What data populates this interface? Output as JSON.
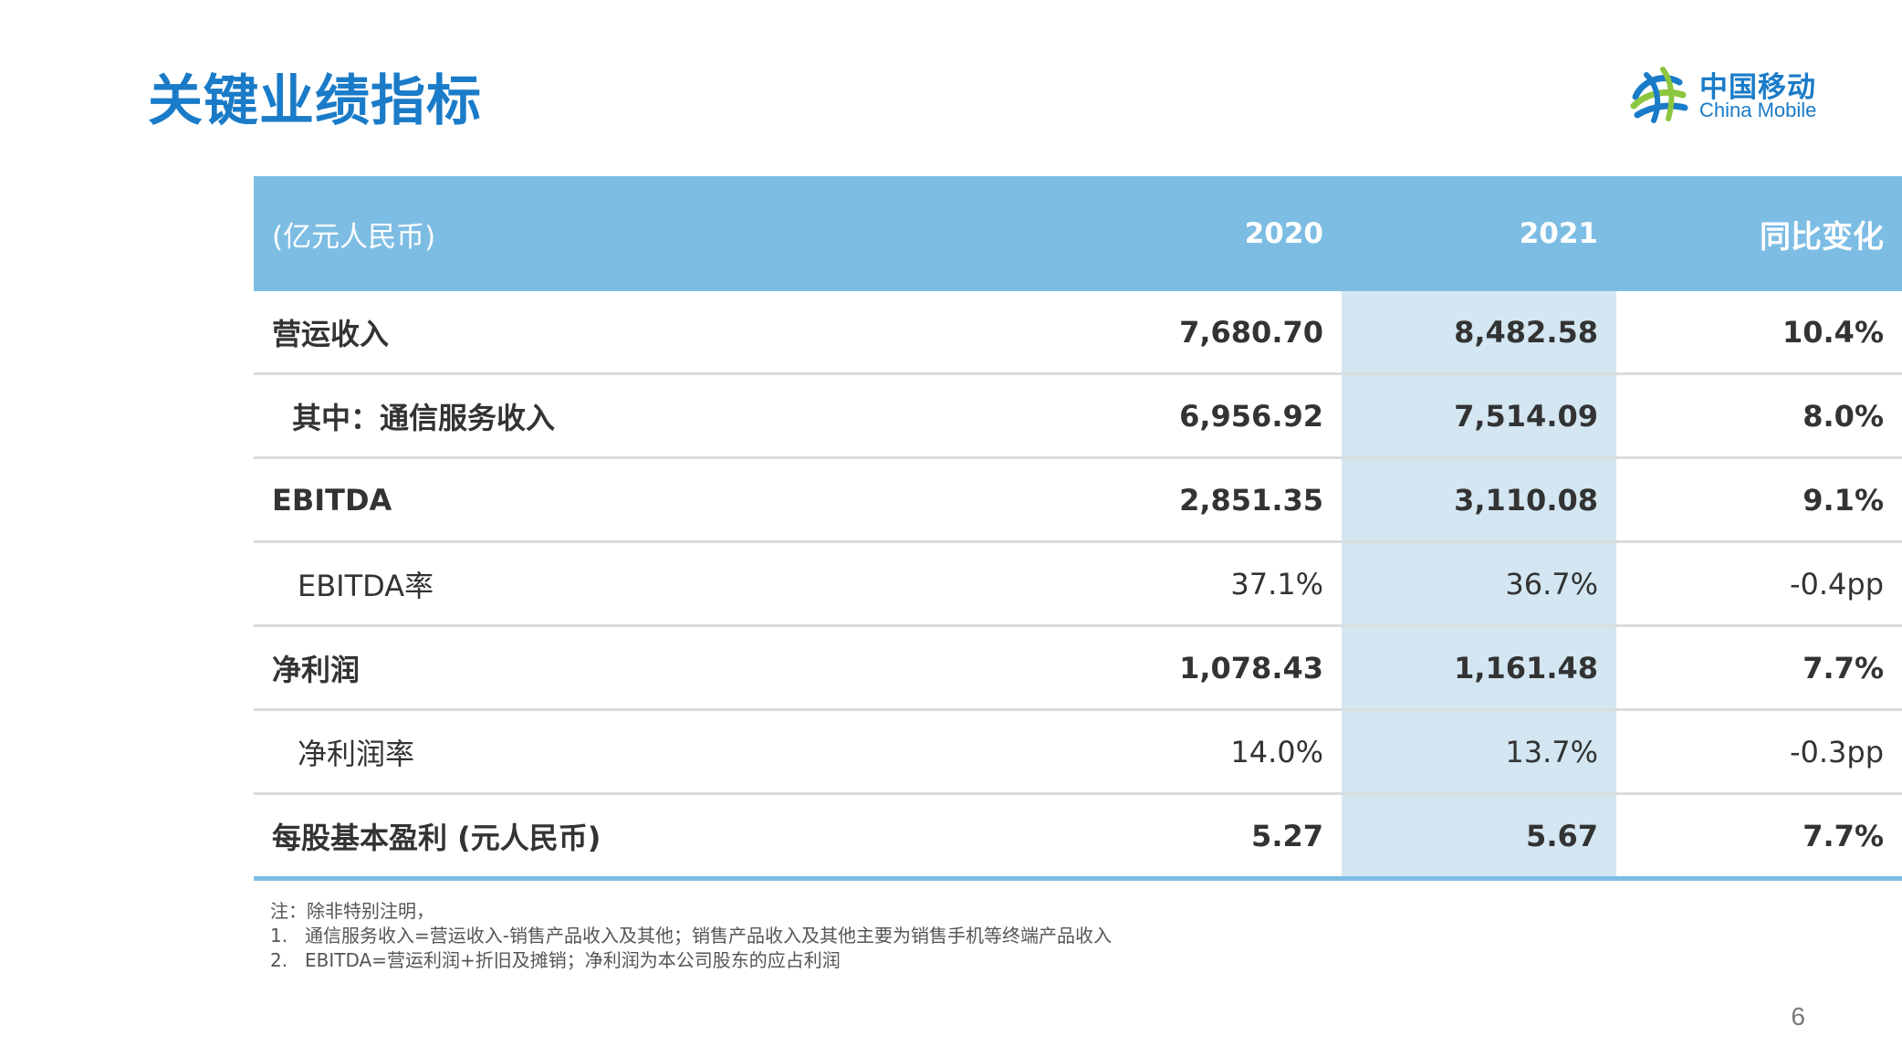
{
  "slide_title": "关键业绩指标",
  "logo": {
    "cn": "中国移动",
    "en": "China Mobile",
    "icon": "china-mobile-logo-icon"
  },
  "table": {
    "headers": [
      "(亿元人民币)",
      "2020",
      "2021",
      "同比变化"
    ],
    "rows": [
      {
        "label": "营运收入",
        "v2020": "7,680.70",
        "v2021": "8,482.58",
        "yoy": "10.4%"
      },
      {
        "label": "其中：通信服务收入",
        "v2020": "6,956.92",
        "v2021": "7,514.09",
        "yoy": "8.0%"
      },
      {
        "label": "EBITDA",
        "v2020": "2,851.35",
        "v2021": "3,110.08",
        "yoy": "9.1%"
      },
      {
        "label": "EBITDA率",
        "v2020": "37.1%",
        "v2021": "36.7%",
        "yoy": "-0.4pp"
      },
      {
        "label": "净利润",
        "v2020": "1,078.43",
        "v2021": "1,161.48",
        "yoy": "7.7%"
      },
      {
        "label": "净利润率",
        "v2020": "14.0%",
        "v2021": "13.7%",
        "yoy": "-0.3pp"
      },
      {
        "label": "每股基本盈利 (元人民币)",
        "v2020": "5.27",
        "v2021": "5.67",
        "yoy": "7.7%"
      }
    ]
  },
  "notes": {
    "intro": "注：除非特别注明，",
    "items": [
      {
        "num": "1.",
        "text": "通信服务收入=营运收入-销售产品收入及其他；销售产品收入及其他主要为销售手机等终端产品收入"
      },
      {
        "num": "2.",
        "text": "EBITDA=营运利润+折旧及摊销；净利润为本公司股东的应占利润"
      }
    ]
  },
  "page_number": "6",
  "colors": {
    "title": "#1a7bc8",
    "header_bg": "#7dbde4",
    "highlight_col": "#d3e6f2",
    "row_divider": "#dcdcdc"
  }
}
